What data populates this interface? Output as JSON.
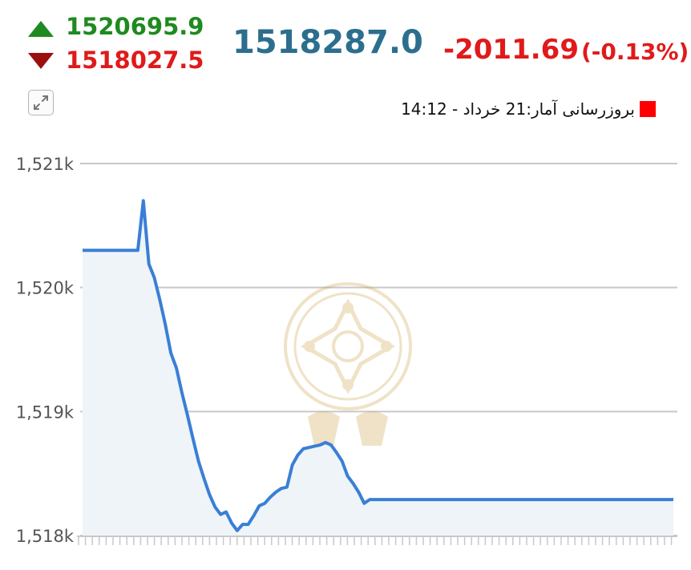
{
  "header": {
    "high": "1520695.9",
    "low": "1518027.5",
    "last": "1518287.0",
    "change": "-2011.69",
    "change_pct": "(-0.13%)",
    "update_text": "بروزرسانی آمار:21 خرداد - 14:12",
    "colors": {
      "up": "#1f8a1f",
      "down": "#e01a1a",
      "last": "#2c6e8e"
    }
  },
  "icons": {
    "high": "triangle-up-icon",
    "low": "triangle-down-icon",
    "expand": "expand-arrows-icon",
    "legend": "red-square-icon"
  },
  "chart_data": {
    "type": "area",
    "ylim": [
      1518000,
      1521000
    ],
    "y_ticks": [
      1518000,
      1519000,
      1520000,
      1521000
    ],
    "y_tick_labels": [
      "1,518k",
      "1,519k",
      "1,520k",
      "1,521k"
    ],
    "grid": true,
    "line_color": "#3a7fd5",
    "fill_color": "#eef4f8",
    "values": [
      1520300,
      1520300,
      1520300,
      1520300,
      1520300,
      1520300,
      1520300,
      1520300,
      1520300,
      1520300,
      1520300,
      1520700,
      1520190,
      1520080,
      1519900,
      1519700,
      1519470,
      1519350,
      1519150,
      1518970,
      1518780,
      1518600,
      1518460,
      1518330,
      1518230,
      1518170,
      1518190,
      1518100,
      1518040,
      1518090,
      1518090,
      1518160,
      1518240,
      1518260,
      1518310,
      1518350,
      1518380,
      1518390,
      1518570,
      1518650,
      1518700,
      1518710,
      1518720,
      1518730,
      1518750,
      1518730,
      1518670,
      1518600,
      1518480,
      1518420,
      1518350,
      1518260,
      1518290,
      1518290,
      1518290,
      1518290,
      1518290,
      1518290,
      1518290,
      1518290,
      1518290,
      1518290,
      1518290,
      1518290,
      1518290,
      1518290,
      1518290,
      1518290,
      1518290,
      1518290,
      1518290,
      1518290,
      1518290,
      1518290,
      1518290,
      1518290,
      1518290,
      1518290,
      1518290,
      1518290,
      1518290,
      1518290,
      1518290,
      1518290,
      1518290,
      1518290,
      1518290,
      1518290,
      1518290,
      1518290,
      1518290,
      1518290,
      1518290,
      1518290,
      1518290,
      1518290,
      1518290,
      1518290,
      1518290,
      1518290,
      1518290,
      1518290,
      1518290,
      1518290,
      1518290,
      1518290,
      1518290,
      1518290
    ]
  }
}
